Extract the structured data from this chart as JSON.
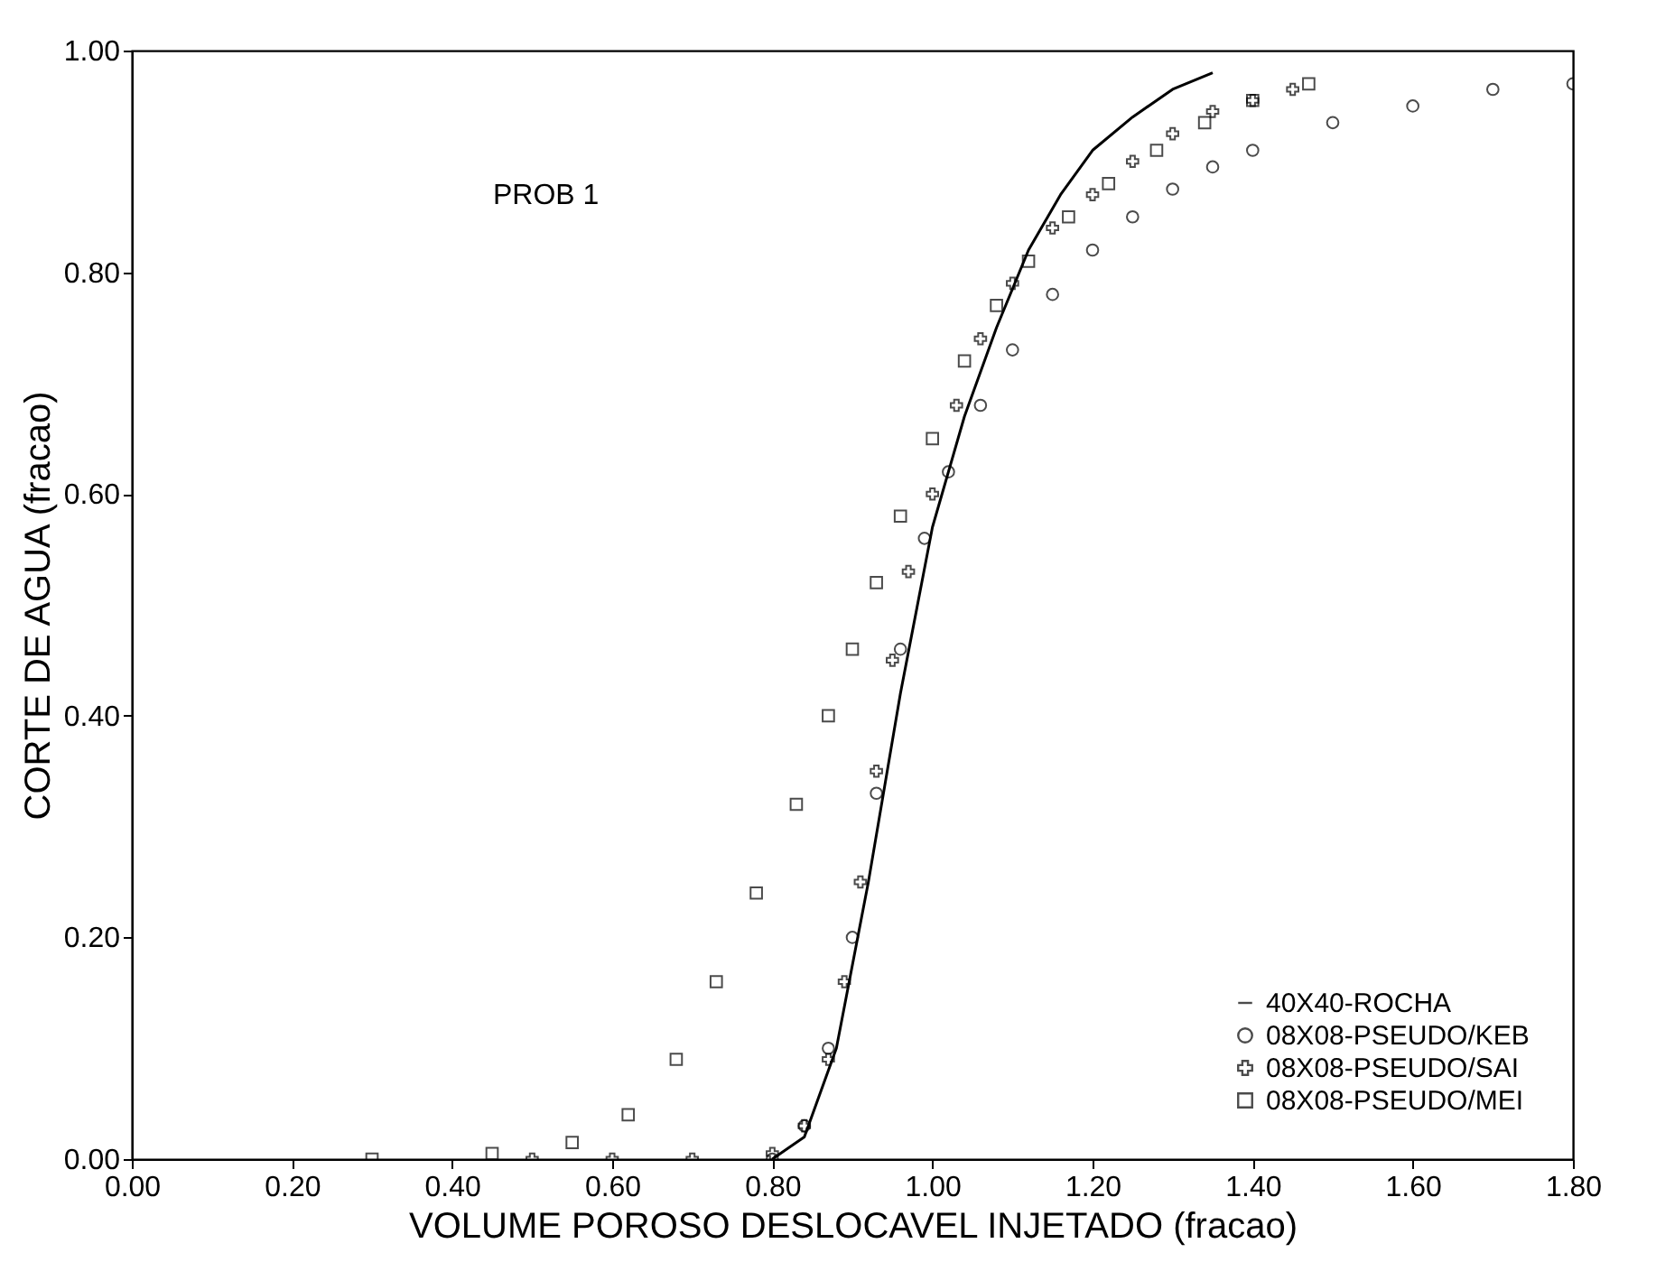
{
  "chart_data": {
    "type": "scatter",
    "xlabel": "VOLUME POROSO DESLOCAVEL INJETADO (fracao)",
    "ylabel": "CORTE DE AGUA (fracao)",
    "annotations": [
      "PROB 1"
    ],
    "xlim": [
      0,
      1.8
    ],
    "xticks": [
      {
        "value": 0,
        "label": "0.00"
      },
      {
        "value": 0.2,
        "label": "0.20"
      },
      {
        "value": 0.4,
        "label": "0.40"
      },
      {
        "value": 0.6,
        "label": "0.60"
      },
      {
        "value": 0.8,
        "label": "0.80"
      },
      {
        "value": 1,
        "label": "1.00"
      },
      {
        "value": 1.2,
        "label": "1.20"
      },
      {
        "value": 1.4,
        "label": "1.40"
      },
      {
        "value": 1.6,
        "label": "1.60"
      },
      {
        "value": 1.8,
        "label": "1.80"
      }
    ],
    "ylim": [
      0,
      1
    ],
    "yticks": [
      {
        "value": 0,
        "label": "0.00"
      },
      {
        "value": 0.2,
        "label": "0.20"
      },
      {
        "value": 0.4,
        "label": "0.40"
      },
      {
        "value": 0.6,
        "label": "0.60"
      },
      {
        "value": 0.8,
        "label": "0.80"
      },
      {
        "value": 1,
        "label": "1.00"
      }
    ],
    "legend": "bottom right",
    "grid": false,
    "series": [
      {
        "name": "40X40-ROCHA",
        "type": "line",
        "marker": "none",
        "color": "#000000",
        "x": [
          0.8,
          0.84,
          0.88,
          0.92,
          0.96,
          1.0,
          1.04,
          1.08,
          1.12,
          1.16,
          1.2,
          1.25,
          1.3,
          1.35
        ],
        "values": [
          0,
          0.02,
          0.1,
          0.25,
          0.42,
          0.57,
          0.67,
          0.75,
          0.82,
          0.87,
          0.91,
          0.94,
          0.965,
          0.98
        ]
      },
      {
        "name": "08X08-PSEUDO/KEB",
        "marker": "circle",
        "color": "#000000",
        "x": [
          0.8,
          0.84,
          0.87,
          0.9,
          0.93,
          0.96,
          0.99,
          1.02,
          1.06,
          1.1,
          1.15,
          1.2,
          1.25,
          1.3,
          1.35,
          1.4,
          1.5,
          1.6,
          1.7,
          1.8
        ],
        "values": [
          0,
          0.03,
          0.1,
          0.2,
          0.33,
          0.46,
          0.56,
          0.62,
          0.68,
          0.73,
          0.78,
          0.82,
          0.85,
          0.875,
          0.895,
          0.91,
          0.935,
          0.95,
          0.965,
          0.97
        ]
      },
      {
        "name": "08X08-PSEUDO/SAI",
        "marker": "cross",
        "color": "#000000",
        "x": [
          0.5,
          0.6,
          0.7,
          0.8,
          0.84,
          0.87,
          0.89,
          0.91,
          0.93,
          0.95,
          0.97,
          1.0,
          1.03,
          1.06,
          1.1,
          1.15,
          1.2,
          1.25,
          1.3,
          1.35,
          1.4,
          1.45
        ],
        "values": [
          0,
          0,
          0,
          0.005,
          0.03,
          0.09,
          0.16,
          0.25,
          0.35,
          0.45,
          0.53,
          0.6,
          0.68,
          0.74,
          0.79,
          0.84,
          0.87,
          0.9,
          0.925,
          0.945,
          0.955,
          0.965
        ]
      },
      {
        "name": "08X08-PSEUDO/MEI",
        "marker": "square",
        "color": "#000000",
        "x": [
          0.3,
          0.45,
          0.55,
          0.62,
          0.68,
          0.73,
          0.78,
          0.83,
          0.87,
          0.9,
          0.93,
          0.96,
          1.0,
          1.04,
          1.08,
          1.12,
          1.17,
          1.22,
          1.28,
          1.34,
          1.4,
          1.47
        ],
        "values": [
          0,
          0.005,
          0.015,
          0.04,
          0.09,
          0.16,
          0.24,
          0.32,
          0.4,
          0.46,
          0.52,
          0.58,
          0.65,
          0.72,
          0.77,
          0.81,
          0.85,
          0.88,
          0.91,
          0.935,
          0.955,
          0.97
        ]
      }
    ]
  }
}
